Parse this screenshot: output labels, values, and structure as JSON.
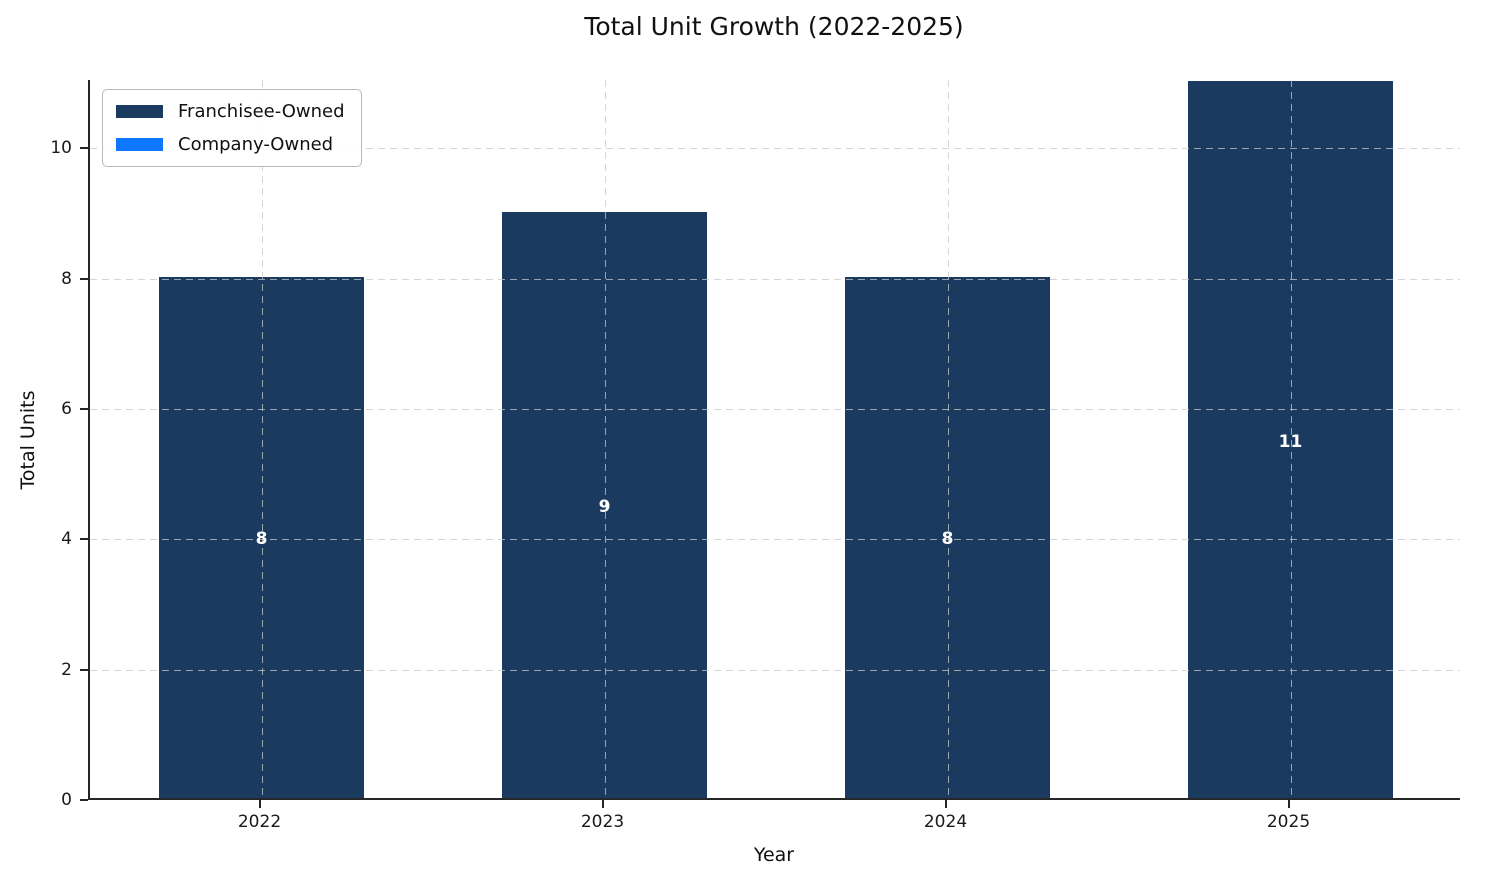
{
  "title": "Total Unit Growth (2022-2025)",
  "colors": {
    "franchisee_bar": "#1A3A5F",
    "company_bar": "#0D78FF",
    "gridline": "#c8c8c8",
    "spine": "#262626",
    "bar_value_label": "#ffffff",
    "text": "#111111"
  },
  "chart_data": {
    "type": "bar",
    "stacked": true,
    "title": "Total Unit Growth (2022-2025)",
    "xlabel": "Year",
    "ylabel": "Total Units",
    "categories": [
      "2022",
      "2023",
      "2024",
      "2025"
    ],
    "series": [
      {
        "name": "Franchisee-Owned",
        "color": "#1A3A5F",
        "values": [
          8,
          9,
          8,
          11
        ]
      },
      {
        "name": "Company-Owned",
        "color": "#0D78FF",
        "values": [
          0,
          0,
          0,
          0
        ]
      }
    ],
    "bar_total_labels": [
      "8",
      "9",
      "8",
      "11"
    ],
    "yticks": [
      0,
      2,
      4,
      6,
      8,
      10
    ],
    "ylim": [
      0,
      11.05
    ],
    "bar_width_fraction": 0.6,
    "grid": "dashed, both axes, drawn over bars",
    "legend_position": "upper left"
  }
}
